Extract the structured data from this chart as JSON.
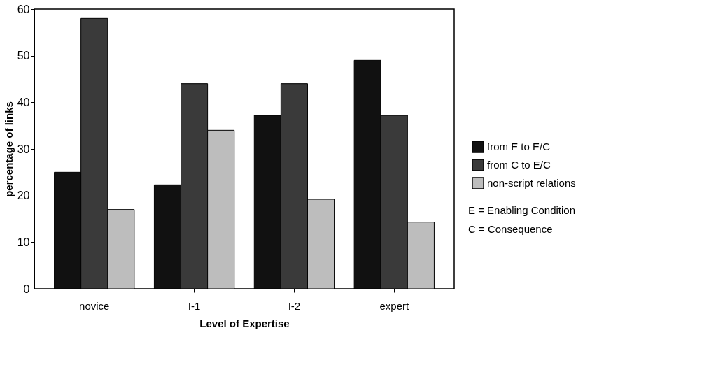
{
  "chart_data": {
    "type": "bar",
    "xlabel": "Level of Expertise",
    "ylabel": "percentage of links",
    "categories": [
      "novice",
      "I-1",
      "I-2",
      "expert"
    ],
    "series": [
      {
        "name": "from E to E/C",
        "color": "#111111",
        "values": [
          25,
          22.3,
          37.2,
          49
        ]
      },
      {
        "name": "from C to E/C",
        "color": "#3a3a3a",
        "values": [
          58,
          44,
          44,
          37.2
        ]
      },
      {
        "name": "non-script relations",
        "color": "#bdbdbd",
        "values": [
          17,
          34,
          19.2,
          14.3
        ]
      }
    ],
    "ylim": [
      0,
      60
    ],
    "yticks": [
      0,
      10,
      20,
      30,
      40,
      50,
      60
    ],
    "grid": false,
    "legend": "right",
    "annotations": [
      "E = Enabling Condition",
      "C = Consequence"
    ]
  }
}
